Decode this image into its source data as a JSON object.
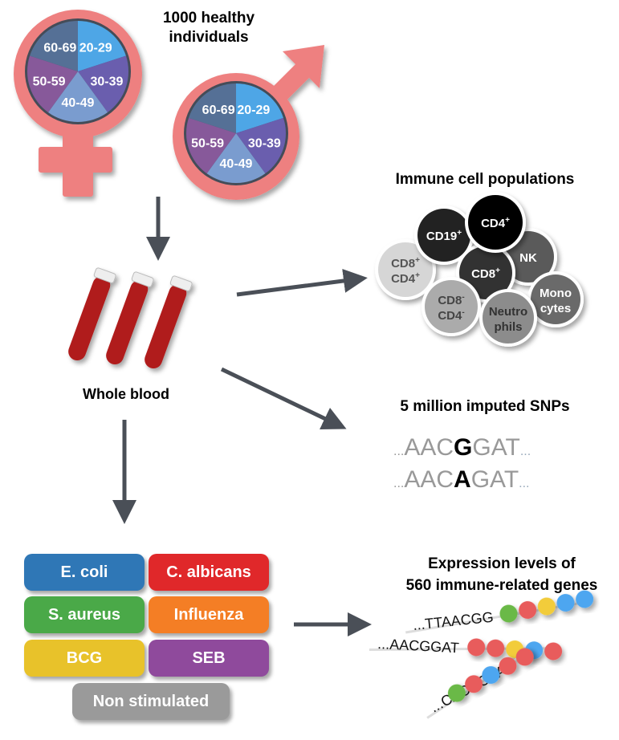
{
  "title": "1000 healthy individuals",
  "title_line1": "1000 healthy",
  "title_line2": "individuals",
  "age_groups": [
    "20-29",
    "30-39",
    "40-49",
    "50-59",
    "60-69"
  ],
  "age_colors": [
    "#4ea6e6",
    "#6a5eae",
    "#7a9ccf",
    "#87599a",
    "#557096"
  ],
  "symbol_color": "#ee8080",
  "sample_label": "Whole blood",
  "cells": {
    "title": "Immune cell populations",
    "items": [
      {
        "line1": "CD8",
        "sup1": "+",
        "line2": "CD4",
        "sup2": "+",
        "color": "#d6d6d6",
        "text": "#555555"
      },
      {
        "line1": "CD19",
        "sup1": "+",
        "color": "#222222",
        "text": "#ffffff"
      },
      {
        "line1": "NK",
        "color": "#5a5a5a",
        "text": "#ffffff"
      },
      {
        "line1": "CD8",
        "sup1": "+",
        "color": "#333333",
        "text": "#ffffff"
      },
      {
        "line1": "CD4",
        "sup1": "+",
        "color": "#050505",
        "text": "#ffffff"
      },
      {
        "line1": "CD8",
        "sup1": "-",
        "line2": "CD4",
        "sup2": "-",
        "color": "#ababab",
        "text": "#444444"
      },
      {
        "line1": "Mono",
        "line2": "cytes",
        "color": "#6a6a6a",
        "text": "#ffffff"
      },
      {
        "line1": "Neutro",
        "line2": "phils",
        "color": "#8c8c8c",
        "text": "#333333"
      }
    ]
  },
  "snps": {
    "title": "5 million imputed SNPs",
    "seq1": {
      "prefix": "...",
      "pre": "AAC",
      "allele": "G",
      "post": "GAT",
      "suffix": "..."
    },
    "seq2": {
      "prefix": "...",
      "pre": "AAC",
      "allele": "A",
      "post": "GAT",
      "suffix": "..."
    }
  },
  "expression": {
    "title_line1": "Expression levels of",
    "title_line2": "560 immune-related genes",
    "strands": [
      {
        "seq": "...TTAACGG",
        "beads": [
          "#6bb946",
          "#e85c5c",
          "#f2cc3a",
          "#4ea6f0",
          "#4ea6f0"
        ]
      },
      {
        "seq": "...AACGGAT",
        "beads": [
          "#e85c5c",
          "#e85c5c",
          "#f2cc3a",
          "#4ea6f0",
          "#e85c5c"
        ]
      },
      {
        "seq": "...CACGCAA",
        "beads": [
          "#6bb946",
          "#e85c5c",
          "#4ea6f0",
          "#e85c5c",
          "#e85c5c"
        ]
      }
    ]
  },
  "stimuli": [
    {
      "label": "E. coli",
      "color": "#2f77b6"
    },
    {
      "label": "C. albicans",
      "color": "#e0282a"
    },
    {
      "label": "S. aureus",
      "color": "#4aa948"
    },
    {
      "label": "Influenza",
      "color": "#f47e25"
    },
    {
      "label": "BCG",
      "color": "#e8c22a"
    },
    {
      "label": "SEB",
      "color": "#8f4a9c"
    },
    {
      "label": "Non stimulated",
      "color": "#9a9a9a"
    }
  ],
  "arrow_color": "#4a4f57"
}
